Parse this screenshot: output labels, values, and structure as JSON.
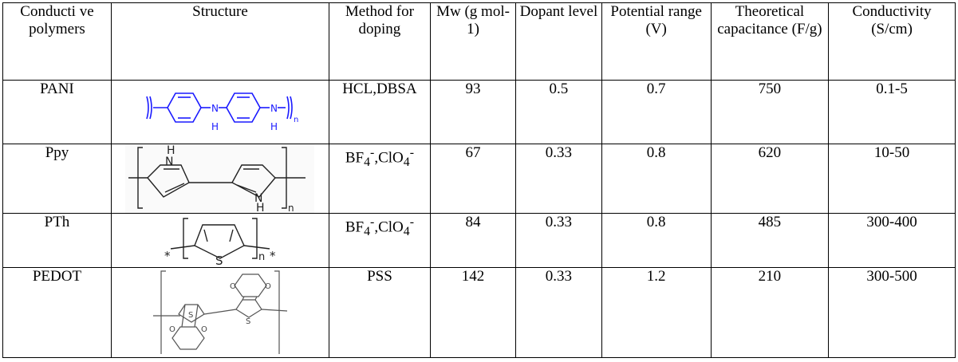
{
  "header": {
    "col1": "Conducti ve polymers",
    "col2": "Structure",
    "col3": "Method for doping",
    "col4": "Mw (g mol-1)",
    "col5": "Dopant level",
    "col6": "Potential range (V)",
    "col7": "Theoretical capacitance (F/g)",
    "col8": "Conductivity (S/cm)"
  },
  "rows": [
    {
      "polymer": "PANI",
      "structure_icon": "polyaniline-structure-icon",
      "doping": "HCL,DBSA",
      "mw": "93",
      "dopant": "0.5",
      "potential": "0.7",
      "capacitance": "750",
      "conductivity": "0.1-5",
      "structure_labels": [
        "N",
        "H",
        "N",
        "H",
        "n"
      ]
    },
    {
      "polymer": "Ppy",
      "structure_icon": "polypyrrole-structure-icon",
      "doping_a": "BF",
      "doping_a_sub": "4",
      "doping_a_sup": "-",
      "doping_sep": ",ClO",
      "doping_b_sub": "4",
      "doping_b_sup": "-",
      "mw": "67",
      "dopant": "0.33",
      "potential": "0.8",
      "capacitance": "620",
      "conductivity": "10-50",
      "structure_labels": [
        "H",
        "N",
        "N",
        "H",
        "n"
      ]
    },
    {
      "polymer": "PTh",
      "structure_icon": "polythiophene-structure-icon",
      "doping_a": "BF",
      "doping_a_sub": "4",
      "doping_a_sup": "-",
      "doping_sep": ",ClO",
      "doping_b_sub": "4",
      "doping_b_sup": "-",
      "mw": "84",
      "dopant": "0.33",
      "potential": "0.8",
      "capacitance": "485",
      "conductivity": "300-400",
      "structure_labels": [
        "*",
        "S",
        "n",
        "*"
      ]
    },
    {
      "polymer": "PEDOT",
      "structure_icon": "pedot-structure-icon",
      "doping": "PSS",
      "mw": "142",
      "dopant": "0.33",
      "potential": "1.2",
      "capacitance": "210",
      "conductivity": "300-500",
      "structure_labels": [
        "O",
        "O",
        "S",
        "S",
        "O",
        "O"
      ]
    }
  ]
}
